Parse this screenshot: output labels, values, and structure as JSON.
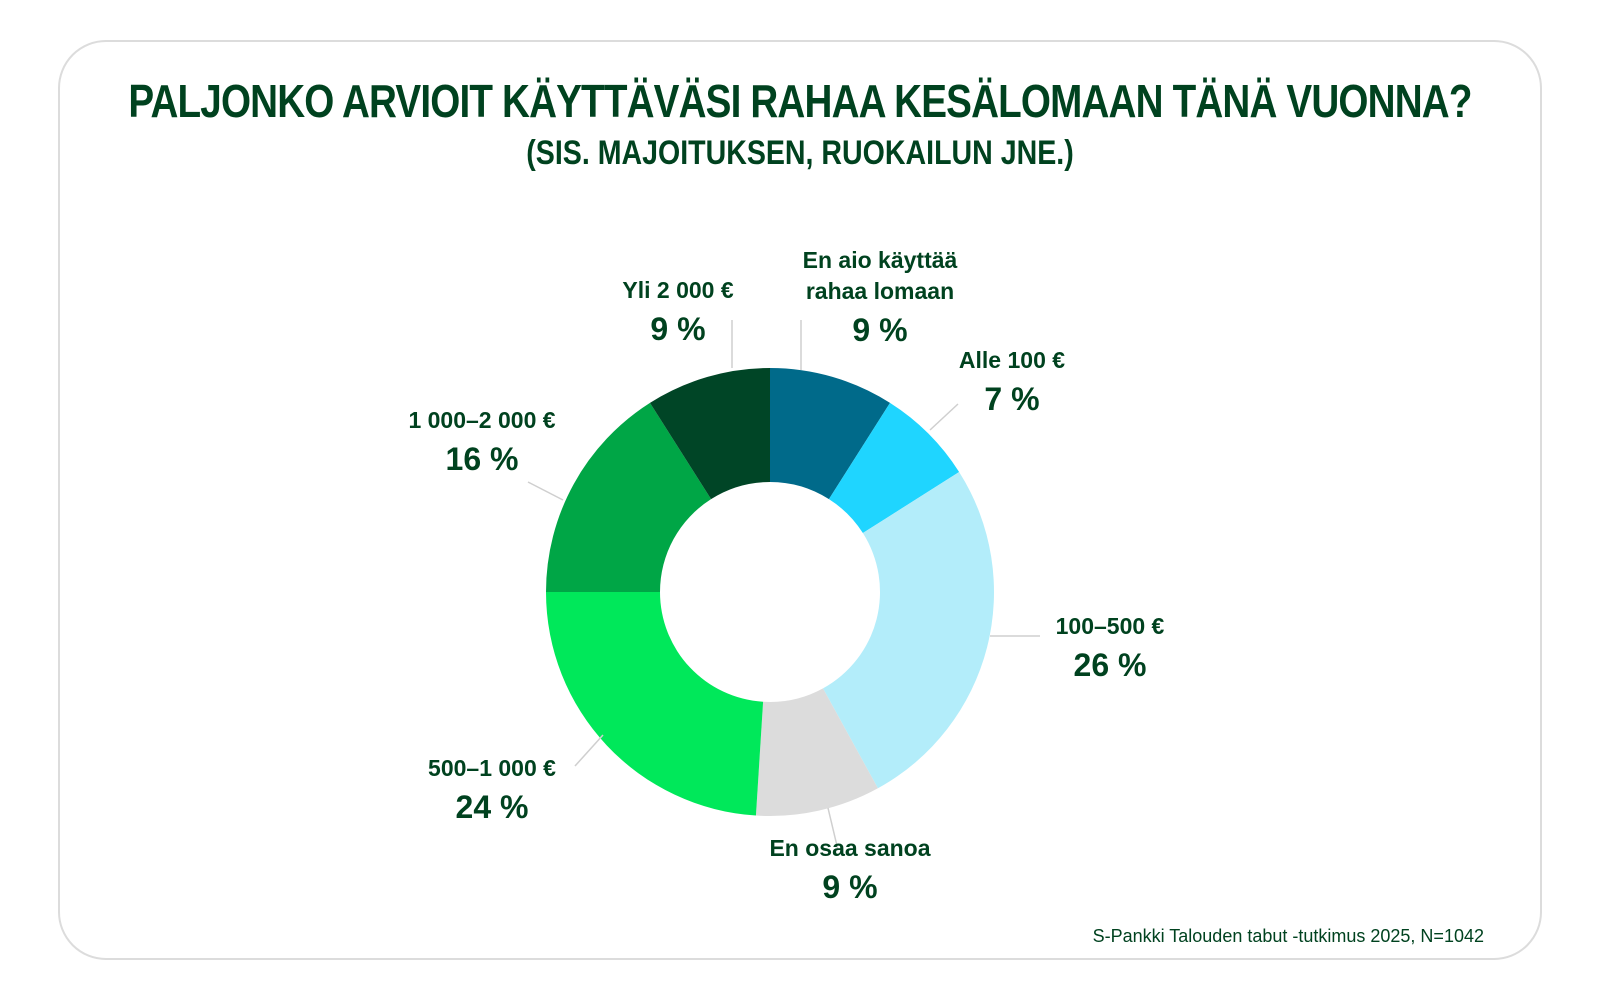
{
  "title": "PALJONKO ARVIOIT KÄYTTÄVÄSI RAHAA KESÄLOMAAN TÄNÄ VUONNA?",
  "subtitle": "(SIS. MAJOITUKSEN, RUOKAILUN JNE.)",
  "source": "S-Pankki Talouden tabut -tutkimus 2025, N=1042",
  "chart_data": {
    "type": "pie",
    "donut": true,
    "slices": [
      {
        "label": [
          "En aio käyttää",
          "rahaa lomaan"
        ],
        "value": 9,
        "value_label": "9 %",
        "color": "#006a8a"
      },
      {
        "label": [
          "Alle 100 €"
        ],
        "value": 7,
        "value_label": "7 %",
        "color": "#1fd5ff"
      },
      {
        "label": [
          "100–500 €"
        ],
        "value": 26,
        "value_label": "26 %",
        "color": "#b3edfa"
      },
      {
        "label": [
          "En osaa sanoa"
        ],
        "value": 9,
        "value_label": "9 %",
        "color": "#dcdcdc"
      },
      {
        "label": [
          "500–1 000 €"
        ],
        "value": 24,
        "value_label": "24 %",
        "color": "#00e85a"
      },
      {
        "label": [
          "1 000–2 000 €"
        ],
        "value": 16,
        "value_label": "16 %",
        "color": "#00a646"
      },
      {
        "label": [
          "Yli 2 000 €"
        ],
        "value": 9,
        "value_label": "9 %",
        "color": "#004526"
      }
    ]
  }
}
